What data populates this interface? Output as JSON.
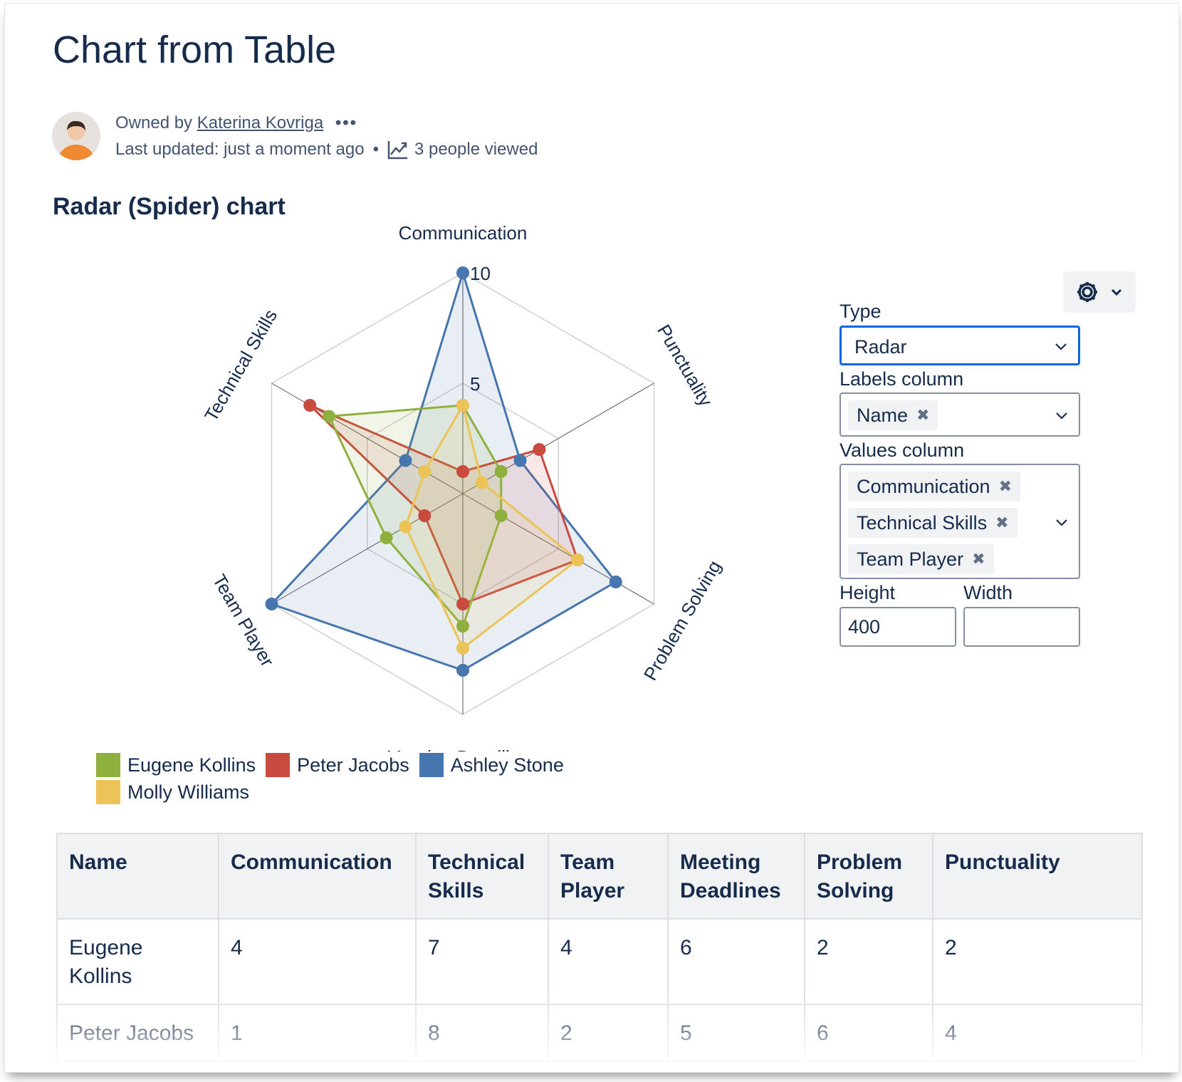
{
  "page": {
    "title": "Chart from Table",
    "owned_by_prefix": "Owned by",
    "owner_name": "Katerina Kovriga",
    "more": "•••",
    "last_updated": "Last updated: just a moment ago",
    "dot": "•",
    "views": "3 people viewed",
    "section_title": "Radar (Spider) chart"
  },
  "chart_data": {
    "type": "radar",
    "axes": [
      "Communication",
      "Punctuality",
      "Problem Solving",
      "Meeting Deadlines",
      "Team Player",
      "Technical Skills"
    ],
    "max": 10,
    "tick_labels": [
      "5",
      "10"
    ],
    "series": [
      {
        "name": "Eugene Kollins",
        "color": "#8fb03d",
        "values": [
          4,
          2,
          2,
          6,
          4,
          7
        ]
      },
      {
        "name": "Peter Jacobs",
        "color": "#c94a3e",
        "values": [
          1,
          4,
          6,
          5,
          2,
          8
        ]
      },
      {
        "name": "Ashley Stone",
        "color": "#4775ae",
        "values": [
          10,
          3,
          8,
          8,
          10,
          3
        ]
      },
      {
        "name": "Molly Williams",
        "color": "#ecc357",
        "values": [
          4,
          1,
          6,
          7,
          3,
          2
        ]
      }
    ],
    "legend_position": "bottom-left"
  },
  "settings": {
    "type_label": "Type",
    "type_value": "Radar",
    "labels_column_label": "Labels column",
    "labels_column_tags": [
      "Name"
    ],
    "values_column_label": "Values column",
    "values_column_tags": [
      "Communication",
      "Technical Skills",
      "Team Player"
    ],
    "height_label": "Height",
    "height_value": "400",
    "width_label": "Width",
    "width_value": "",
    "remove_glyph": "✖"
  },
  "table": {
    "headers": [
      "Name",
      "Communication",
      "Technical Skills",
      "Team Player",
      "Meeting Deadlines",
      "Problem Solving",
      "Punctuality"
    ],
    "rows": [
      [
        "Eugene Kollins",
        "4",
        "7",
        "4",
        "6",
        "2",
        "2"
      ],
      [
        "Peter Jacobs",
        "1",
        "8",
        "2",
        "5",
        "6",
        "4"
      ]
    ]
  },
  "icons": {
    "avatar": "user-avatar",
    "more": "more-dots-icon",
    "views": "trend-chart-icon",
    "settings": "gear-icon",
    "chevron": "chevron-down-icon",
    "remove": "close-icon"
  }
}
